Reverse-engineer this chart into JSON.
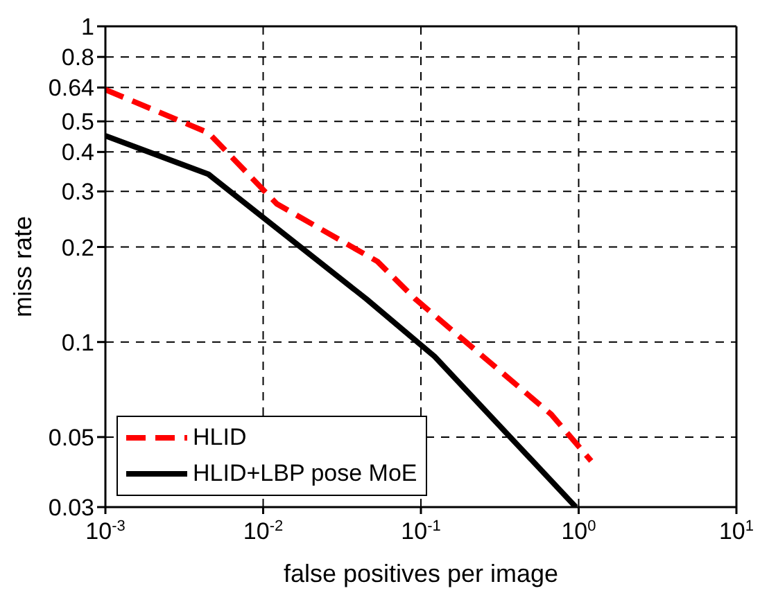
{
  "chart_data": {
    "type": "line",
    "xlabel": "false positives per image",
    "ylabel": "miss rate",
    "log": "xy",
    "grid": true,
    "legend": "bottom left",
    "marker": "none",
    "xlim": [
      0.001,
      10
    ],
    "xticks": [
      {
        "value": 0.001,
        "label": "10$^{-3}$"
      },
      {
        "value": 0.01,
        "label": "10$^{-2}$"
      },
      {
        "value": 0.1,
        "label": "10$^{-1}$"
      },
      {
        "value": 1,
        "label": "10$^{0}$"
      },
      {
        "value": 10,
        "label": "10$^{1}$"
      }
    ],
    "ylim": [
      0.03,
      1
    ],
    "yticks": [
      0.03,
      0.05,
      0.1,
      0.2,
      0.3,
      0.4,
      0.5,
      0.64,
      0.8,
      1
    ],
    "series": [
      {
        "name": "HLID",
        "color": "#ff0000",
        "line_style": "dashed",
        "x": [
          0.001,
          0.0045,
          0.0122,
          0.053,
          0.092,
          0.18,
          0.67,
          1.2
        ],
        "values": [
          0.63,
          0.46,
          0.274,
          0.18,
          0.137,
          0.103,
          0.059,
          0.042
        ]
      },
      {
        "name": "HLID+LBP pose MoE",
        "color": "#000000",
        "line_style": "solid",
        "x": [
          0.001,
          0.0045,
          0.045,
          0.122,
          0.96
        ],
        "values": [
          0.45,
          0.34,
          0.137,
          0.09,
          0.03
        ]
      }
    ]
  }
}
